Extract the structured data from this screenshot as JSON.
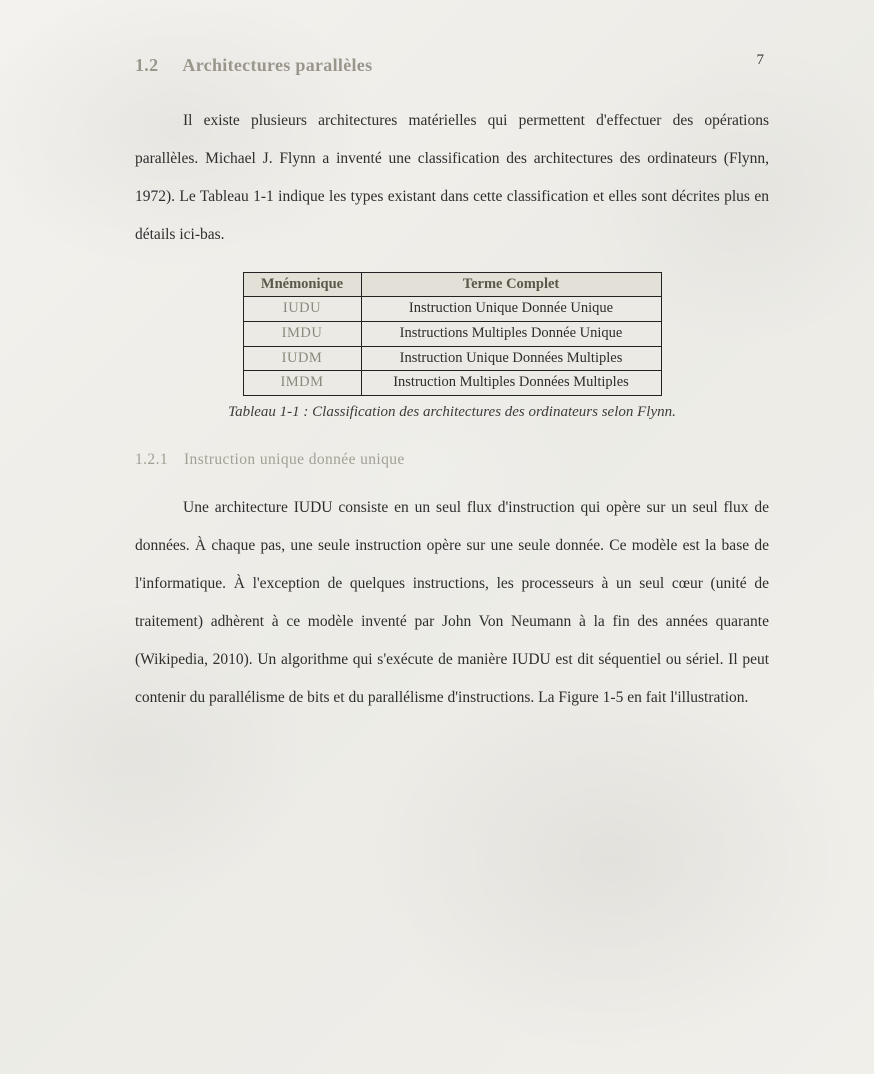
{
  "page_number": "7",
  "section": {
    "number": "1.2",
    "title": "Architectures parallèles"
  },
  "paragraph_1": "Il existe plusieurs architectures matérielles qui permettent d'effectuer des opérations parallèles. Michael J. Flynn a inventé une classification des architectures des ordinateurs (Flynn, 1972). Le Tableau 1-1 indique les types existant dans cette classification et elles sont décrites plus en détails ici-bas.",
  "table": {
    "headers": [
      "Mnémonique",
      "Terme Complet"
    ],
    "rows": [
      [
        "IUDU",
        "Instruction Unique Donnée Unique"
      ],
      [
        "IMDU",
        "Instructions Multiples Donnée Unique"
      ],
      [
        "IUDM",
        "Instruction Unique Données Multiples"
      ],
      [
        "IMDM",
        "Instruction Multiples Données Multiples"
      ]
    ],
    "caption": "Tableau 1-1 : Classification des architectures des ordinateurs selon Flynn."
  },
  "subsection": {
    "number": "1.2.1",
    "title": "Instruction unique donnée unique"
  },
  "paragraph_2": "Une architecture IUDU consiste en un seul flux d'instruction qui opère sur un seul flux de données. À chaque pas, une seule instruction opère sur une seule donnée. Ce modèle est la base de l'informatique. À l'exception de quelques instructions, les processeurs à un seul cœur (unité de traitement) adhèrent à ce modèle inventé par John Von Neumann à la fin des années quarante (Wikipedia, 2010). Un algorithme qui s'exécute de manière IUDU est dit séquentiel ou sériel. Il peut contenir du parallélisme de bits et du parallélisme d'instructions. La Figure 1-5 en fait l'illustration."
}
